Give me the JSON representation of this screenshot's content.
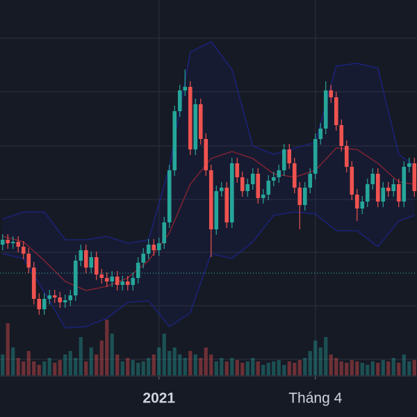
{
  "chart_data": {
    "type": "candlestick",
    "categories": [
      null,
      null,
      null,
      null,
      null,
      null,
      null,
      null,
      null,
      null,
      null,
      null,
      null,
      null,
      null,
      null,
      null,
      null,
      null,
      null,
      null,
      null,
      null,
      null,
      null,
      null,
      null,
      null,
      null,
      null,
      "2021",
      null,
      null,
      null,
      null,
      null,
      null,
      null,
      null,
      null,
      null,
      null,
      null,
      null,
      null,
      null,
      null,
      null,
      null,
      null,
      null,
      null,
      null,
      null,
      null,
      null,
      null,
      null,
      null,
      null,
      "Tháng 4",
      null,
      null,
      null,
      null,
      null,
      null,
      null,
      null,
      null,
      null,
      null,
      null,
      null,
      null,
      null,
      null,
      null,
      null,
      null
    ],
    "open": [
      188,
      195,
      190,
      192,
      185,
      175,
      155,
      110,
      95,
      110,
      115,
      112,
      105,
      108,
      115,
      165,
      180,
      155,
      170,
      145,
      140,
      135,
      142,
      130,
      135,
      130,
      140,
      162,
      175,
      188,
      180,
      190,
      220,
      295,
      380,
      410,
      415,
      325,
      390,
      340,
      295,
      210,
      265,
      270,
      220,
      305,
      285,
      265,
      275,
      290,
      255,
      260,
      280,
      285,
      295,
      325,
      305,
      270,
      245,
      270,
      290,
      340,
      355,
      410,
      400,
      360,
      330,
      300,
      260,
      240,
      250,
      275,
      290,
      250,
      270,
      265,
      275,
      250,
      300,
      305
    ],
    "high": [
      203,
      203,
      200,
      200,
      193,
      183,
      163,
      118,
      118,
      123,
      123,
      120,
      116,
      123,
      173,
      188,
      188,
      178,
      178,
      153,
      148,
      150,
      150,
      143,
      143,
      148,
      170,
      183,
      196,
      196,
      198,
      228,
      303,
      388,
      418,
      440,
      423,
      398,
      398,
      348,
      303,
      273,
      278,
      278,
      313,
      313,
      293,
      283,
      298,
      298,
      268,
      288,
      293,
      303,
      333,
      333,
      313,
      278,
      278,
      298,
      348,
      363,
      423,
      418,
      408,
      368,
      338,
      308,
      268,
      258,
      283,
      298,
      298,
      278,
      278,
      283,
      283,
      308,
      313,
      313
    ],
    "low": [
      180,
      182,
      182,
      177,
      167,
      147,
      102,
      87,
      87,
      102,
      104,
      97,
      97,
      100,
      107,
      157,
      147,
      147,
      137,
      132,
      127,
      127,
      122,
      122,
      122,
      122,
      132,
      154,
      167,
      172,
      172,
      182,
      212,
      287,
      372,
      402,
      317,
      317,
      332,
      287,
      170,
      202,
      257,
      212,
      212,
      277,
      257,
      257,
      267,
      247,
      247,
      252,
      272,
      277,
      287,
      297,
      262,
      210,
      237,
      262,
      282,
      332,
      347,
      392,
      352,
      322,
      292,
      252,
      222,
      232,
      242,
      267,
      242,
      242,
      257,
      257,
      242,
      242,
      292,
      257
    ],
    "close": [
      195,
      190,
      192,
      185,
      175,
      155,
      110,
      95,
      110,
      115,
      112,
      105,
      108,
      115,
      165,
      180,
      155,
      170,
      145,
      140,
      135,
      142,
      130,
      135,
      130,
      140,
      162,
      175,
      188,
      180,
      190,
      220,
      295,
      380,
      410,
      415,
      325,
      390,
      340,
      295,
      210,
      265,
      270,
      220,
      305,
      285,
      265,
      275,
      290,
      255,
      260,
      280,
      285,
      295,
      325,
      305,
      270,
      245,
      270,
      290,
      340,
      355,
      410,
      400,
      360,
      330,
      300,
      260,
      240,
      250,
      275,
      290,
      250,
      270,
      265,
      275,
      250,
      300,
      305,
      265
    ],
    "volume": [
      30,
      75,
      40,
      25,
      20,
      35,
      20,
      15,
      20,
      25,
      18,
      22,
      30,
      35,
      25,
      55,
      20,
      40,
      30,
      50,
      80,
      60,
      30,
      20,
      25,
      22,
      18,
      20,
      25,
      30,
      40,
      60,
      35,
      40,
      30,
      25,
      35,
      30,
      25,
      40,
      30,
      20,
      25,
      20,
      25,
      22,
      18,
      20,
      25,
      20,
      15,
      18,
      20,
      22,
      15,
      20,
      18,
      22,
      25,
      35,
      50,
      40,
      55,
      30,
      25,
      20,
      18,
      22,
      20,
      18,
      15,
      20,
      18,
      22,
      20,
      25,
      18,
      30,
      20,
      22
    ],
    "bands": {
      "x": [
        0,
        4,
        8,
        12,
        16,
        20,
        24,
        28,
        32,
        36,
        40,
        44,
        48,
        52,
        56,
        60,
        64,
        68,
        72,
        76,
        79
      ],
      "upper": [
        225,
        235,
        235,
        195,
        195,
        200,
        190,
        195,
        300,
        465,
        480,
        440,
        330,
        318,
        327,
        335,
        445,
        449,
        442,
        318,
        302
      ],
      "middle": [
        200,
        192,
        165,
        135,
        122,
        128,
        140,
        165,
        205,
        275,
        312,
        322,
        312,
        290,
        285,
        295,
        327,
        325,
        305,
        278,
        275
      ],
      "lower": [
        175,
        168,
        120,
        68,
        70,
        82,
        105,
        107,
        70,
        90,
        175,
        168,
        192,
        230,
        235,
        232,
        208,
        208,
        185,
        222,
        230
      ]
    },
    "price_line": 147,
    "ylim": [
      0,
      540
    ],
    "yticks": [
      23,
      100,
      177,
      253,
      330,
      408,
      485
    ],
    "volume_ylim": [
      0,
      100
    ],
    "up_color": "#26a69a",
    "down_color": "#ef5350",
    "band_color": "#1c2385",
    "middle_color": "#8e2433",
    "grid": true
  }
}
